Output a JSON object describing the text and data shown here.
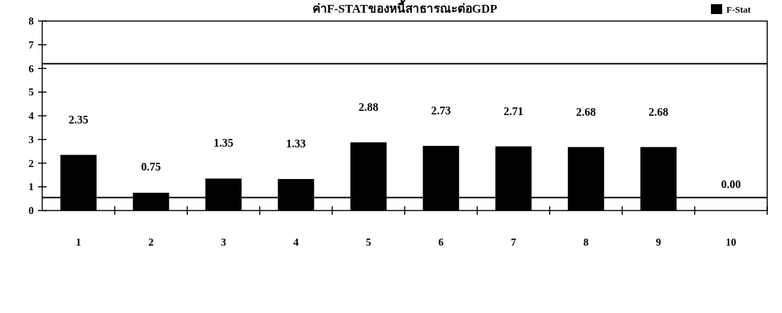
{
  "chart_data": {
    "type": "bar",
    "title": "ค่าF-STATของหนี้สาธารณะต่อGDP",
    "categories": [
      "1",
      "2",
      "3",
      "4",
      "5",
      "6",
      "7",
      "8",
      "9",
      "10"
    ],
    "series": [
      {
        "name": "F-Stat",
        "color": "#000000",
        "values": [
          2.35,
          0.75,
          1.35,
          1.33,
          2.88,
          2.73,
          2.71,
          2.68,
          2.68,
          0.0
        ]
      }
    ],
    "ylim": [
      0,
      8
    ],
    "yticks": [
      0,
      1,
      2,
      3,
      4,
      5,
      6,
      7,
      8
    ],
    "ref_lines": [
      {
        "axis": "y",
        "value": 0.55,
        "color": "#000000"
      },
      {
        "axis": "y",
        "value": 6.2,
        "color": "#000000"
      }
    ],
    "value_labels": [
      "2.35",
      "0.75",
      "1.35",
      "1.33",
      "2.88",
      "2.73",
      "2.71",
      "2.68",
      "2.68",
      "0.00"
    ],
    "legend": "top right",
    "grid": false
  }
}
